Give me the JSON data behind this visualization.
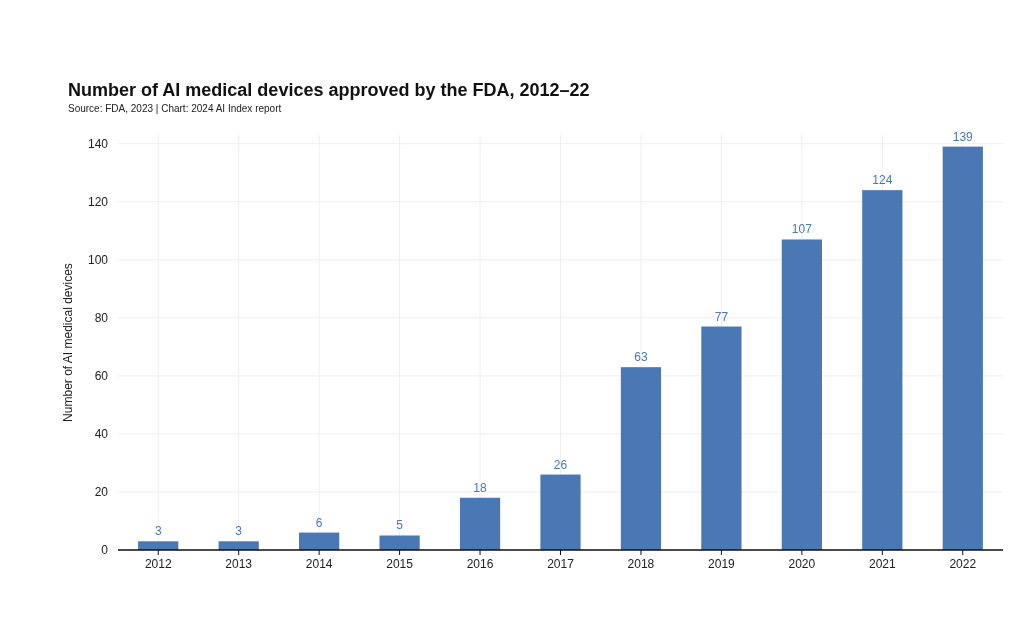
{
  "chart_data": {
    "type": "bar",
    "title": "Number of AI medical devices approved by the FDA, 2012–22",
    "annotations": [
      "Source: FDA, 2023 | Chart: 2024 AI Index report"
    ],
    "ylabel": "Number of AI medical devices",
    "categories": [
      "2012",
      "2013",
      "2014",
      "2015",
      "2016",
      "2017",
      "2018",
      "2019",
      "2020",
      "2021",
      "2022"
    ],
    "values": [
      3,
      3,
      6,
      5,
      18,
      26,
      63,
      77,
      107,
      124,
      139
    ],
    "color": "#4a78b5",
    "ylim": [
      0,
      143
    ],
    "yticks": [
      0,
      20,
      40,
      60,
      80,
      100,
      120,
      140
    ],
    "grid": true,
    "data_labels": true
  }
}
